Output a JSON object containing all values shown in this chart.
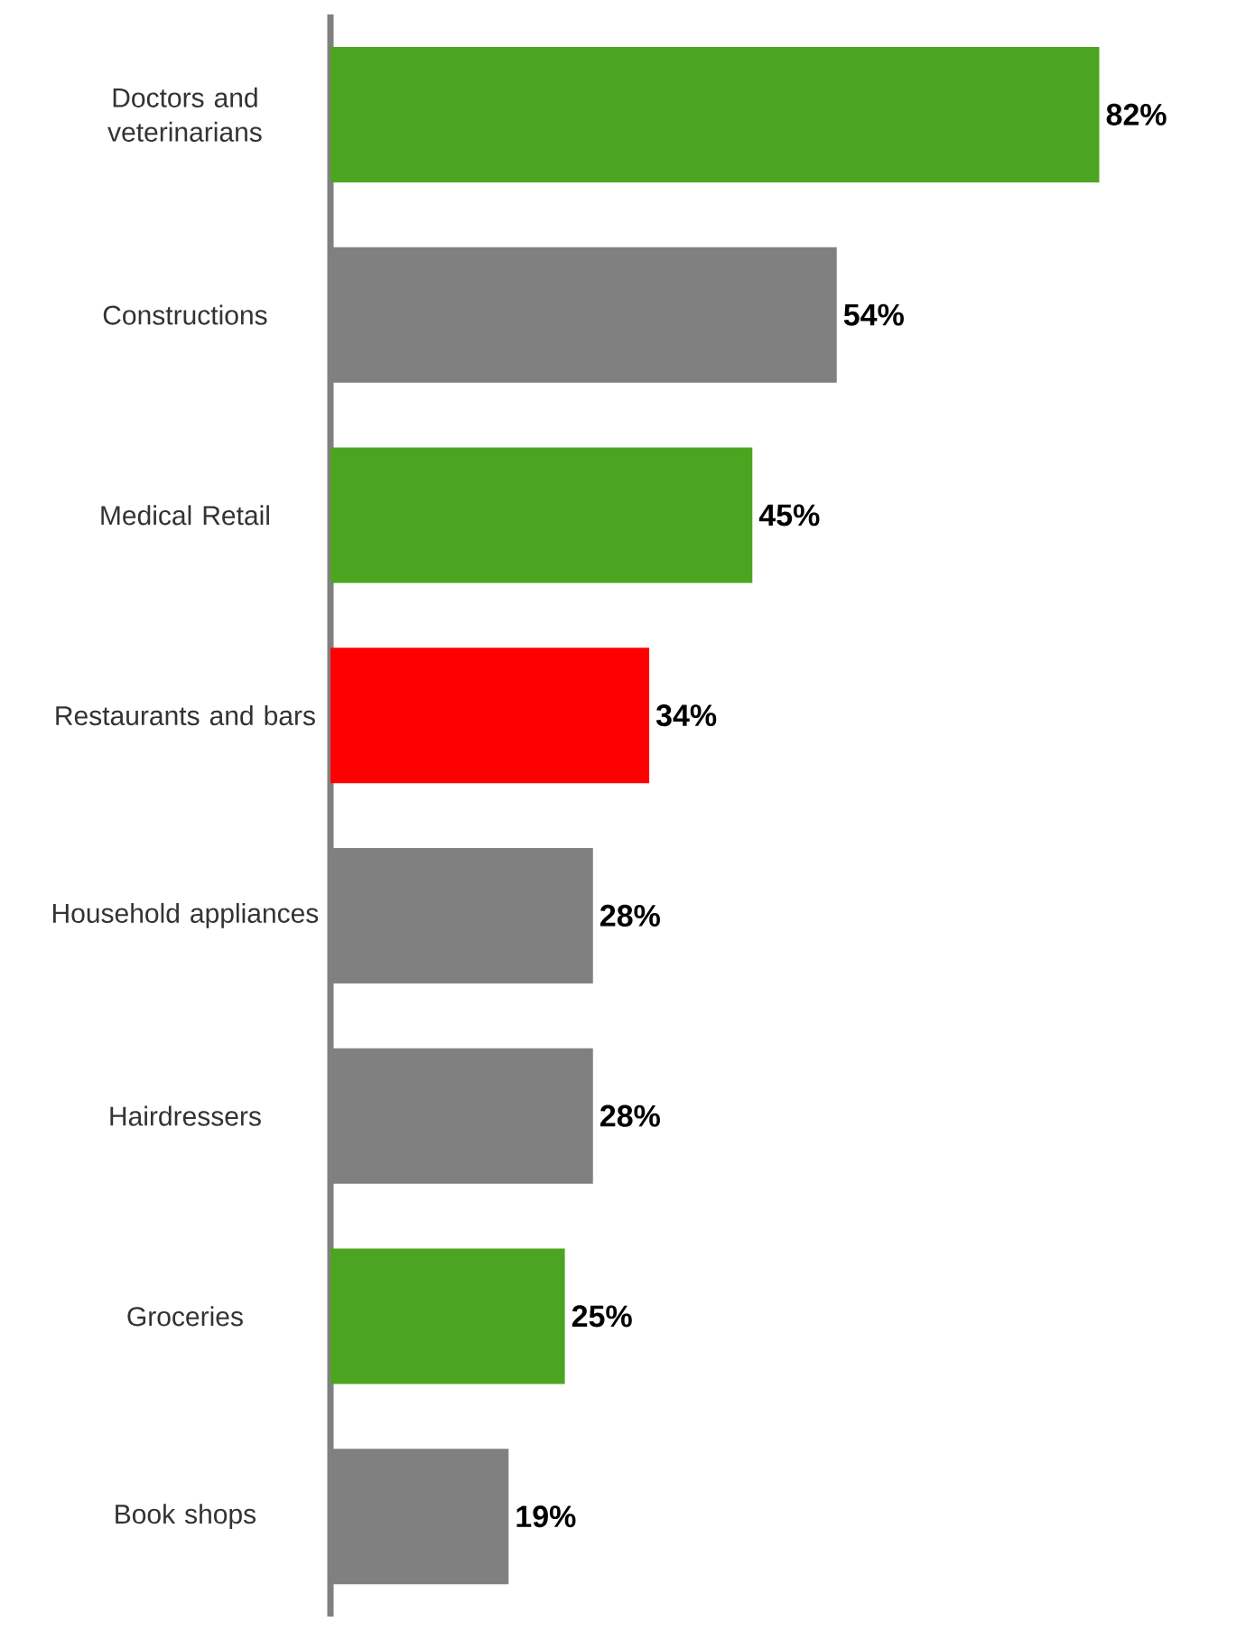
{
  "chart_data": {
    "type": "bar",
    "orientation": "horizontal",
    "categories": [
      "Doctors and veterinarians",
      "Constructions",
      "Medical Retail",
      "Restaurants and bars",
      "Household appliances",
      "Hairdressers",
      "Groceries",
      "Book shops"
    ],
    "values": [
      82,
      54,
      45,
      34,
      28,
      28,
      25,
      19
    ],
    "value_labels": [
      "82%",
      "54%",
      "45%",
      "34%",
      "28%",
      "28%",
      "25%",
      "19%"
    ],
    "colors": [
      "#4ca521",
      "#808080",
      "#4ca521",
      "#ff0000",
      "#808080",
      "#808080",
      "#4ca521",
      "#808080"
    ],
    "legend": false
  }
}
